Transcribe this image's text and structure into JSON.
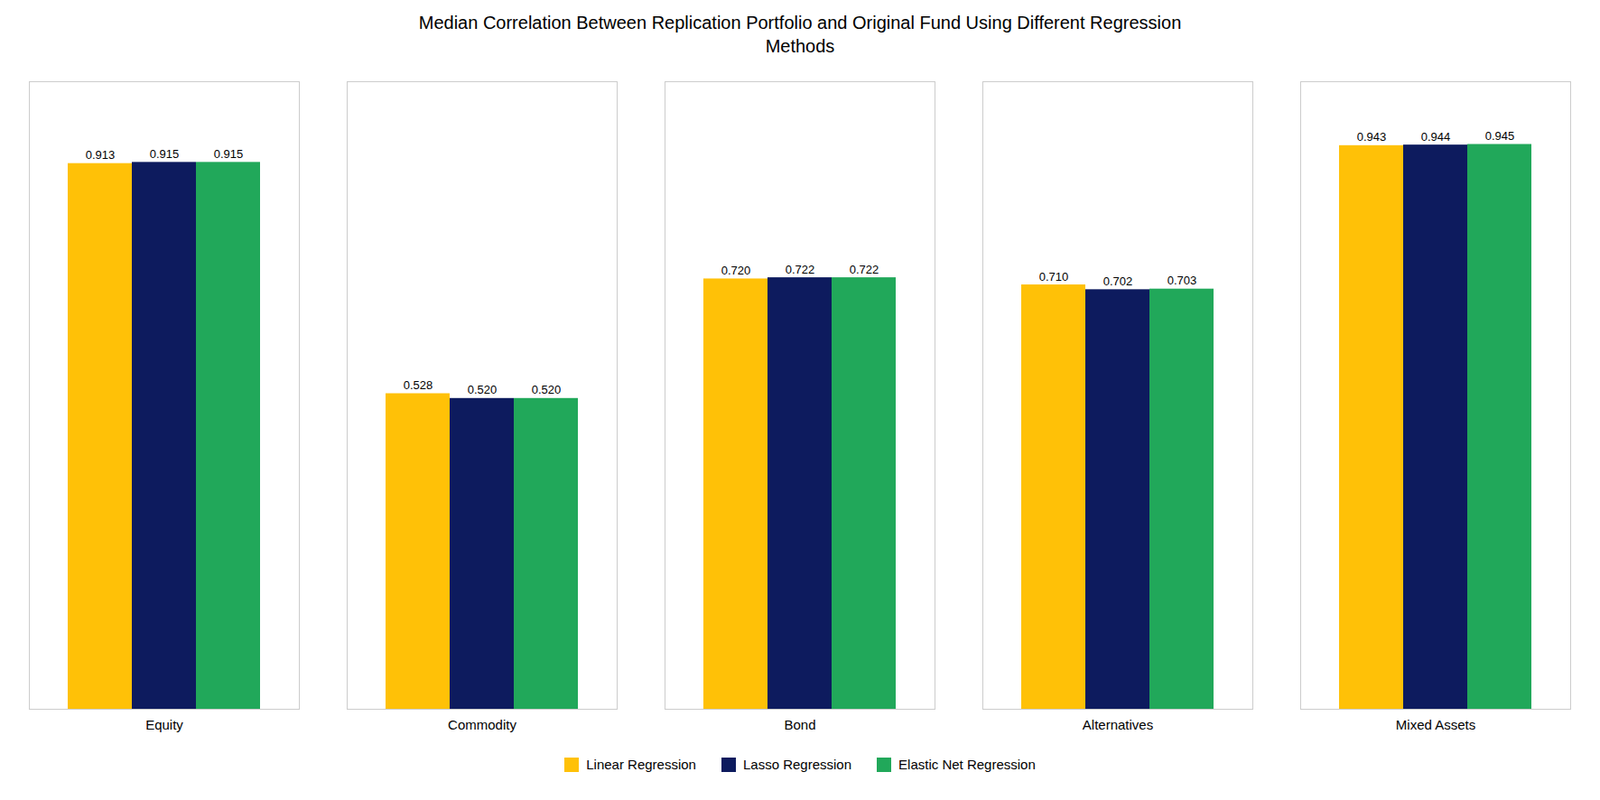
{
  "chart_data": {
    "type": "bar",
    "title": "Median Correlation Between Replication Portfolio and Original Fund Using Different Regression\nMethods",
    "categories": [
      "Equity",
      "Commodity",
      "Bond",
      "Alternatives",
      "Mixed Assets"
    ],
    "series": [
      {
        "name": "Linear Regression",
        "color": "#FFC107",
        "values": [
          0.913,
          0.528,
          0.72,
          0.71,
          0.943
        ],
        "value_labels": [
          "0.913",
          "0.528",
          "0.720",
          "0.710",
          "0.943"
        ]
      },
      {
        "name": "Lasso Regression",
        "color": "#0D1B5E",
        "values": [
          0.915,
          0.52,
          0.722,
          0.702,
          0.944
        ],
        "value_labels": [
          "0.915",
          "0.520",
          "0.722",
          "0.702",
          "0.944"
        ]
      },
      {
        "name": "Elastic Net Regression",
        "color": "#21A85A",
        "values": [
          0.915,
          0.52,
          0.722,
          0.703,
          0.945
        ],
        "value_labels": [
          "0.915",
          "0.520",
          "0.722",
          "0.703",
          "0.945"
        ]
      }
    ],
    "ylim": [
      0,
      1.05
    ],
    "yticks": [],
    "tick_labels": "x",
    "grid": false,
    "legend": "bottom",
    "data_labels": true
  }
}
